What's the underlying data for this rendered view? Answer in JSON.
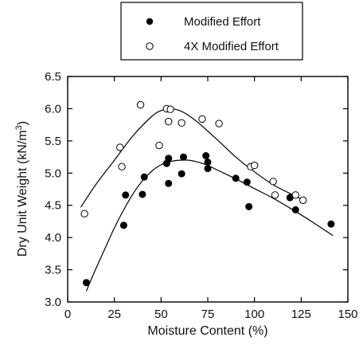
{
  "chart_data": {
    "type": "scatter",
    "xlabel": "Moisture Content (%)",
    "ylabel_main": "Dry Unit Weight (kN/m",
    "ylabel_sup": "3",
    "ylabel_close": ")",
    "xlim": [
      0,
      150
    ],
    "ylim": [
      3.0,
      6.5
    ],
    "xticks": [
      0,
      25,
      50,
      75,
      100,
      125,
      150
    ],
    "yticks": [
      3.0,
      3.5,
      4.0,
      4.5,
      5.0,
      5.5,
      6.0,
      6.5
    ],
    "grid": false,
    "legend_position": "top",
    "series": [
      {
        "name": "Modified Effort",
        "marker": "filled-circle",
        "points": [
          [
            10,
            3.3
          ],
          [
            30,
            4.19
          ],
          [
            31,
            4.66
          ],
          [
            40,
            4.67
          ],
          [
            41,
            4.94
          ],
          [
            53,
            5.15
          ],
          [
            54,
            5.23
          ],
          [
            54,
            4.84
          ],
          [
            61,
            4.99
          ],
          [
            62,
            5.25
          ],
          [
            74,
            5.27
          ],
          [
            75,
            5.17
          ],
          [
            75,
            5.07
          ],
          [
            90,
            4.92
          ],
          [
            96,
            4.86
          ],
          [
            97,
            4.48
          ],
          [
            119,
            4.62
          ],
          [
            122,
            4.43
          ],
          [
            141,
            4.21
          ]
        ]
      },
      {
        "name": "4X Modified Effort",
        "marker": "open-circle",
        "points": [
          [
            9,
            4.37
          ],
          [
            28,
            5.4
          ],
          [
            29,
            5.1
          ],
          [
            39,
            6.06
          ],
          [
            49,
            5.43
          ],
          [
            53,
            6.0
          ],
          [
            54,
            5.8
          ],
          [
            55,
            5.99
          ],
          [
            61,
            5.78
          ],
          [
            72,
            5.84
          ],
          [
            81,
            5.77
          ],
          [
            98,
            5.1
          ],
          [
            100,
            5.12
          ],
          [
            110,
            4.87
          ],
          [
            111,
            4.66
          ],
          [
            122,
            4.66
          ],
          [
            126,
            4.58
          ]
        ]
      }
    ],
    "fit_curves": [
      {
        "series": "4X Modified Effort",
        "points": [
          [
            7,
            4.47
          ],
          [
            15,
            4.82
          ],
          [
            25,
            5.2
          ],
          [
            35,
            5.58
          ],
          [
            45,
            5.88
          ],
          [
            50,
            5.97
          ],
          [
            55,
            6.0
          ],
          [
            60,
            5.97
          ],
          [
            65,
            5.89
          ],
          [
            70,
            5.78
          ],
          [
            80,
            5.52
          ],
          [
            90,
            5.25
          ],
          [
            100,
            5.02
          ],
          [
            110,
            4.82
          ],
          [
            120,
            4.67
          ],
          [
            127,
            4.57
          ]
        ]
      },
      {
        "series": "Modified Effort",
        "points": [
          [
            10,
            3.17
          ],
          [
            15,
            3.51
          ],
          [
            20,
            3.83
          ],
          [
            25,
            4.15
          ],
          [
            30,
            4.43
          ],
          [
            35,
            4.68
          ],
          [
            40,
            4.88
          ],
          [
            45,
            5.03
          ],
          [
            50,
            5.13
          ],
          [
            55,
            5.18
          ],
          [
            60,
            5.2
          ],
          [
            65,
            5.2
          ],
          [
            70,
            5.17
          ],
          [
            75,
            5.12
          ],
          [
            80,
            5.05
          ],
          [
            90,
            4.91
          ],
          [
            100,
            4.76
          ],
          [
            110,
            4.61
          ],
          [
            120,
            4.44
          ],
          [
            130,
            4.26
          ],
          [
            142,
            4.03
          ]
        ]
      }
    ]
  }
}
